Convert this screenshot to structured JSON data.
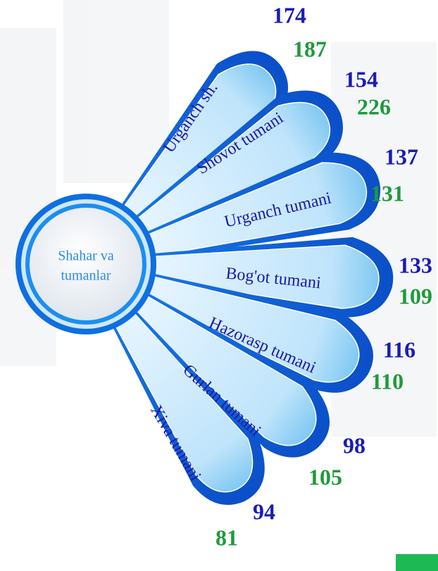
{
  "center": {
    "label_line1": "Shahar va",
    "label_line2": "tumanlar"
  },
  "items": [
    {
      "label": "Urganch sh.",
      "value_blue": "174",
      "value_green": "187"
    },
    {
      "label": "Shovot tumani",
      "value_blue": "154",
      "value_green": "226"
    },
    {
      "label": "Urganch tumani",
      "value_blue": "137",
      "value_green": "131"
    },
    {
      "label": "Bog'ot tumani",
      "value_blue": "133",
      "value_green": "109"
    },
    {
      "label": "Hazorasp tumani",
      "value_blue": "116",
      "value_green": "110"
    },
    {
      "label": "Gurlan tumani",
      "value_blue": "98",
      "value_green": "105"
    },
    {
      "label": "Xiva tumani",
      "value_blue": "94",
      "value_green": "81"
    }
  ]
}
